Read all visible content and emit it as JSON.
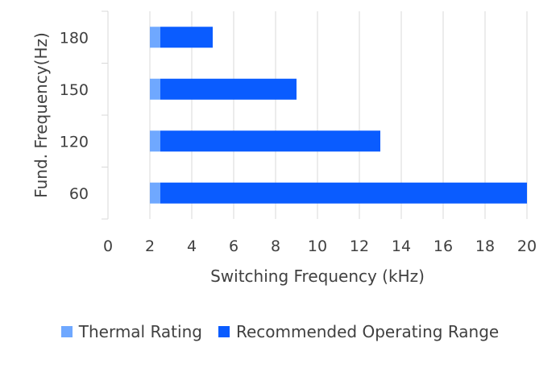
{
  "chart_data": {
    "type": "bar",
    "orientation": "horizontal",
    "stacked": true,
    "categories": [
      "60",
      "120",
      "150",
      "180"
    ],
    "series": [
      {
        "name": "Thermal Rating",
        "start": 2,
        "end": 2.5,
        "color": "#6FA8FF"
      },
      {
        "name": "Recommended Operating Range",
        "start": 2.5,
        "ends": [
          20,
          13,
          9,
          5
        ],
        "color": "#0A5CFF"
      }
    ],
    "x_ticks": [
      "0",
      "2",
      "4",
      "6",
      "8",
      "10",
      "12",
      "14",
      "16",
      "18",
      "20"
    ],
    "xlim": [
      0,
      20
    ],
    "xlabel": "Switching Frequency (kHz)",
    "ylabel": "Fund. Frequency(Hz)",
    "grid": "vertical",
    "legend_position": "bottom"
  }
}
